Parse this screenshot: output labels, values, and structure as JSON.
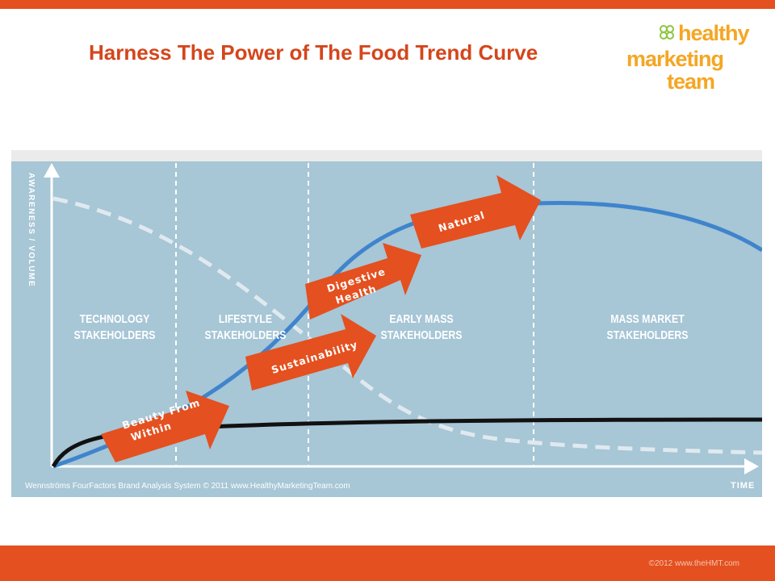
{
  "slide": {
    "title": "Harness The Power of The Food Trend Curve",
    "footer": "©2012 www.theHMT.com"
  },
  "logo": {
    "line1": "healthy",
    "line2": "marketing",
    "line3": "team",
    "icon": "clover-icon",
    "color": "#f5a623"
  },
  "chart": {
    "y_axis_label": "AWARENESS / VOLUME",
    "x_axis_label": "TIME",
    "copyright": "Wennströms FourFactors   Brand Analysis System   © 2011 www.HealthyMarketingTeam.com",
    "stakeholders": [
      {
        "line1": "TECHNOLOGY",
        "line2": "STAKEHOLDERS"
      },
      {
        "line1": "LIFESTYLE",
        "line2": "STAKEHOLDERS"
      },
      {
        "line1": "EARLY MASS",
        "line2": "STAKEHOLDERS"
      },
      {
        "line1": "MASS MARKET",
        "line2": "STAKEHOLDERS"
      }
    ],
    "trends": [
      {
        "line1": "Beauty From",
        "line2": "Within"
      },
      {
        "line1": "Sustainability",
        "line2": ""
      },
      {
        "line1": "Digestive",
        "line2": "Health"
      },
      {
        "line1": "Natural",
        "line2": ""
      }
    ],
    "colors": {
      "background": "#a7c6d6",
      "adoption_curve": "#3f84cc",
      "dashed_curve": "#dfe9ef",
      "black_curve": "#111111",
      "arrow": "#e4501f"
    }
  }
}
